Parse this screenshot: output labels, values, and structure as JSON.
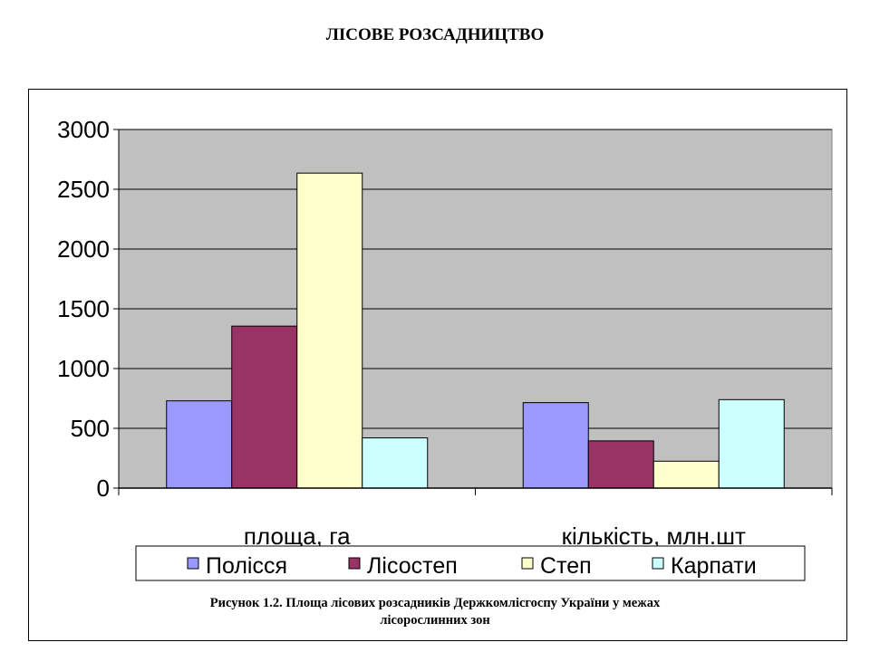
{
  "header": {
    "title": "ЛІСОВЕ РОЗСАДНИЦТВО"
  },
  "chart_data": {
    "type": "bar",
    "categories": [
      "площа, га",
      "кількість, млн.шт"
    ],
    "series": [
      {
        "name": "Полісся",
        "values": [
          730,
          715
        ],
        "color": "#9999ff"
      },
      {
        "name": "Лісостеп",
        "values": [
          1355,
          395
        ],
        "color": "#993366"
      },
      {
        "name": "Степ",
        "values": [
          2635,
          225
        ],
        "color": "#ffffcc"
      },
      {
        "name": "Карпати",
        "values": [
          420,
          740
        ],
        "color": "#ccffff"
      }
    ],
    "ylim": [
      0,
      3000
    ],
    "yticks": [
      "0",
      "500",
      "1000",
      "1500",
      "2000",
      "2500",
      "3000"
    ],
    "grid": true,
    "legend": "bottom",
    "plot_background": "#c0c0c0"
  },
  "caption": {
    "line1": "Рисунок 1.2. Площа лісових розсадників Держкомлісгоспу України у межах",
    "line2": "лісорослинних зон"
  }
}
